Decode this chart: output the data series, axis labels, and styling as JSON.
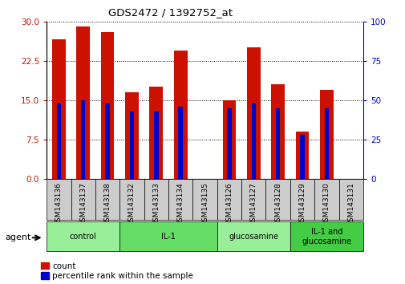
{
  "title": "GDS2472 / 1392752_at",
  "samples": [
    "GSM143136",
    "GSM143137",
    "GSM143138",
    "GSM143132",
    "GSM143133",
    "GSM143134",
    "GSM143135",
    "GSM143126",
    "GSM143127",
    "GSM143128",
    "GSM143129",
    "GSM143130",
    "GSM143131"
  ],
  "count_values": [
    26.5,
    29.0,
    28.0,
    16.5,
    17.5,
    24.5,
    0.0,
    15.0,
    25.0,
    18.0,
    9.0,
    17.0,
    0.0
  ],
  "percentile_values": [
    48.0,
    50.0,
    48.0,
    43.0,
    43.0,
    46.0,
    0.0,
    45.0,
    48.0,
    45.0,
    28.0,
    45.0,
    0.0
  ],
  "groups": [
    {
      "label": "control",
      "start": 0,
      "end": 3,
      "color": "#99ee99"
    },
    {
      "label": "IL-1",
      "start": 3,
      "end": 7,
      "color": "#66dd66"
    },
    {
      "label": "glucosamine",
      "start": 7,
      "end": 10,
      "color": "#99ee99"
    },
    {
      "label": "IL-1 and\nglucosamine",
      "start": 10,
      "end": 13,
      "color": "#44cc44"
    }
  ],
  "bar_color": "#cc1100",
  "percentile_color": "#0000cc",
  "ylim_left": [
    0,
    30
  ],
  "ylim_right": [
    0,
    100
  ],
  "yticks_left": [
    0,
    7.5,
    15,
    22.5,
    30
  ],
  "yticks_right": [
    0,
    25,
    50,
    75,
    100
  ],
  "bar_width": 0.55,
  "pct_bar_width": 0.18,
  "background_color": "#ffffff",
  "legend_count_label": "count",
  "legend_pct_label": "percentile rank within the sample",
  "box_color": "#cccccc",
  "agent_label": "agent"
}
